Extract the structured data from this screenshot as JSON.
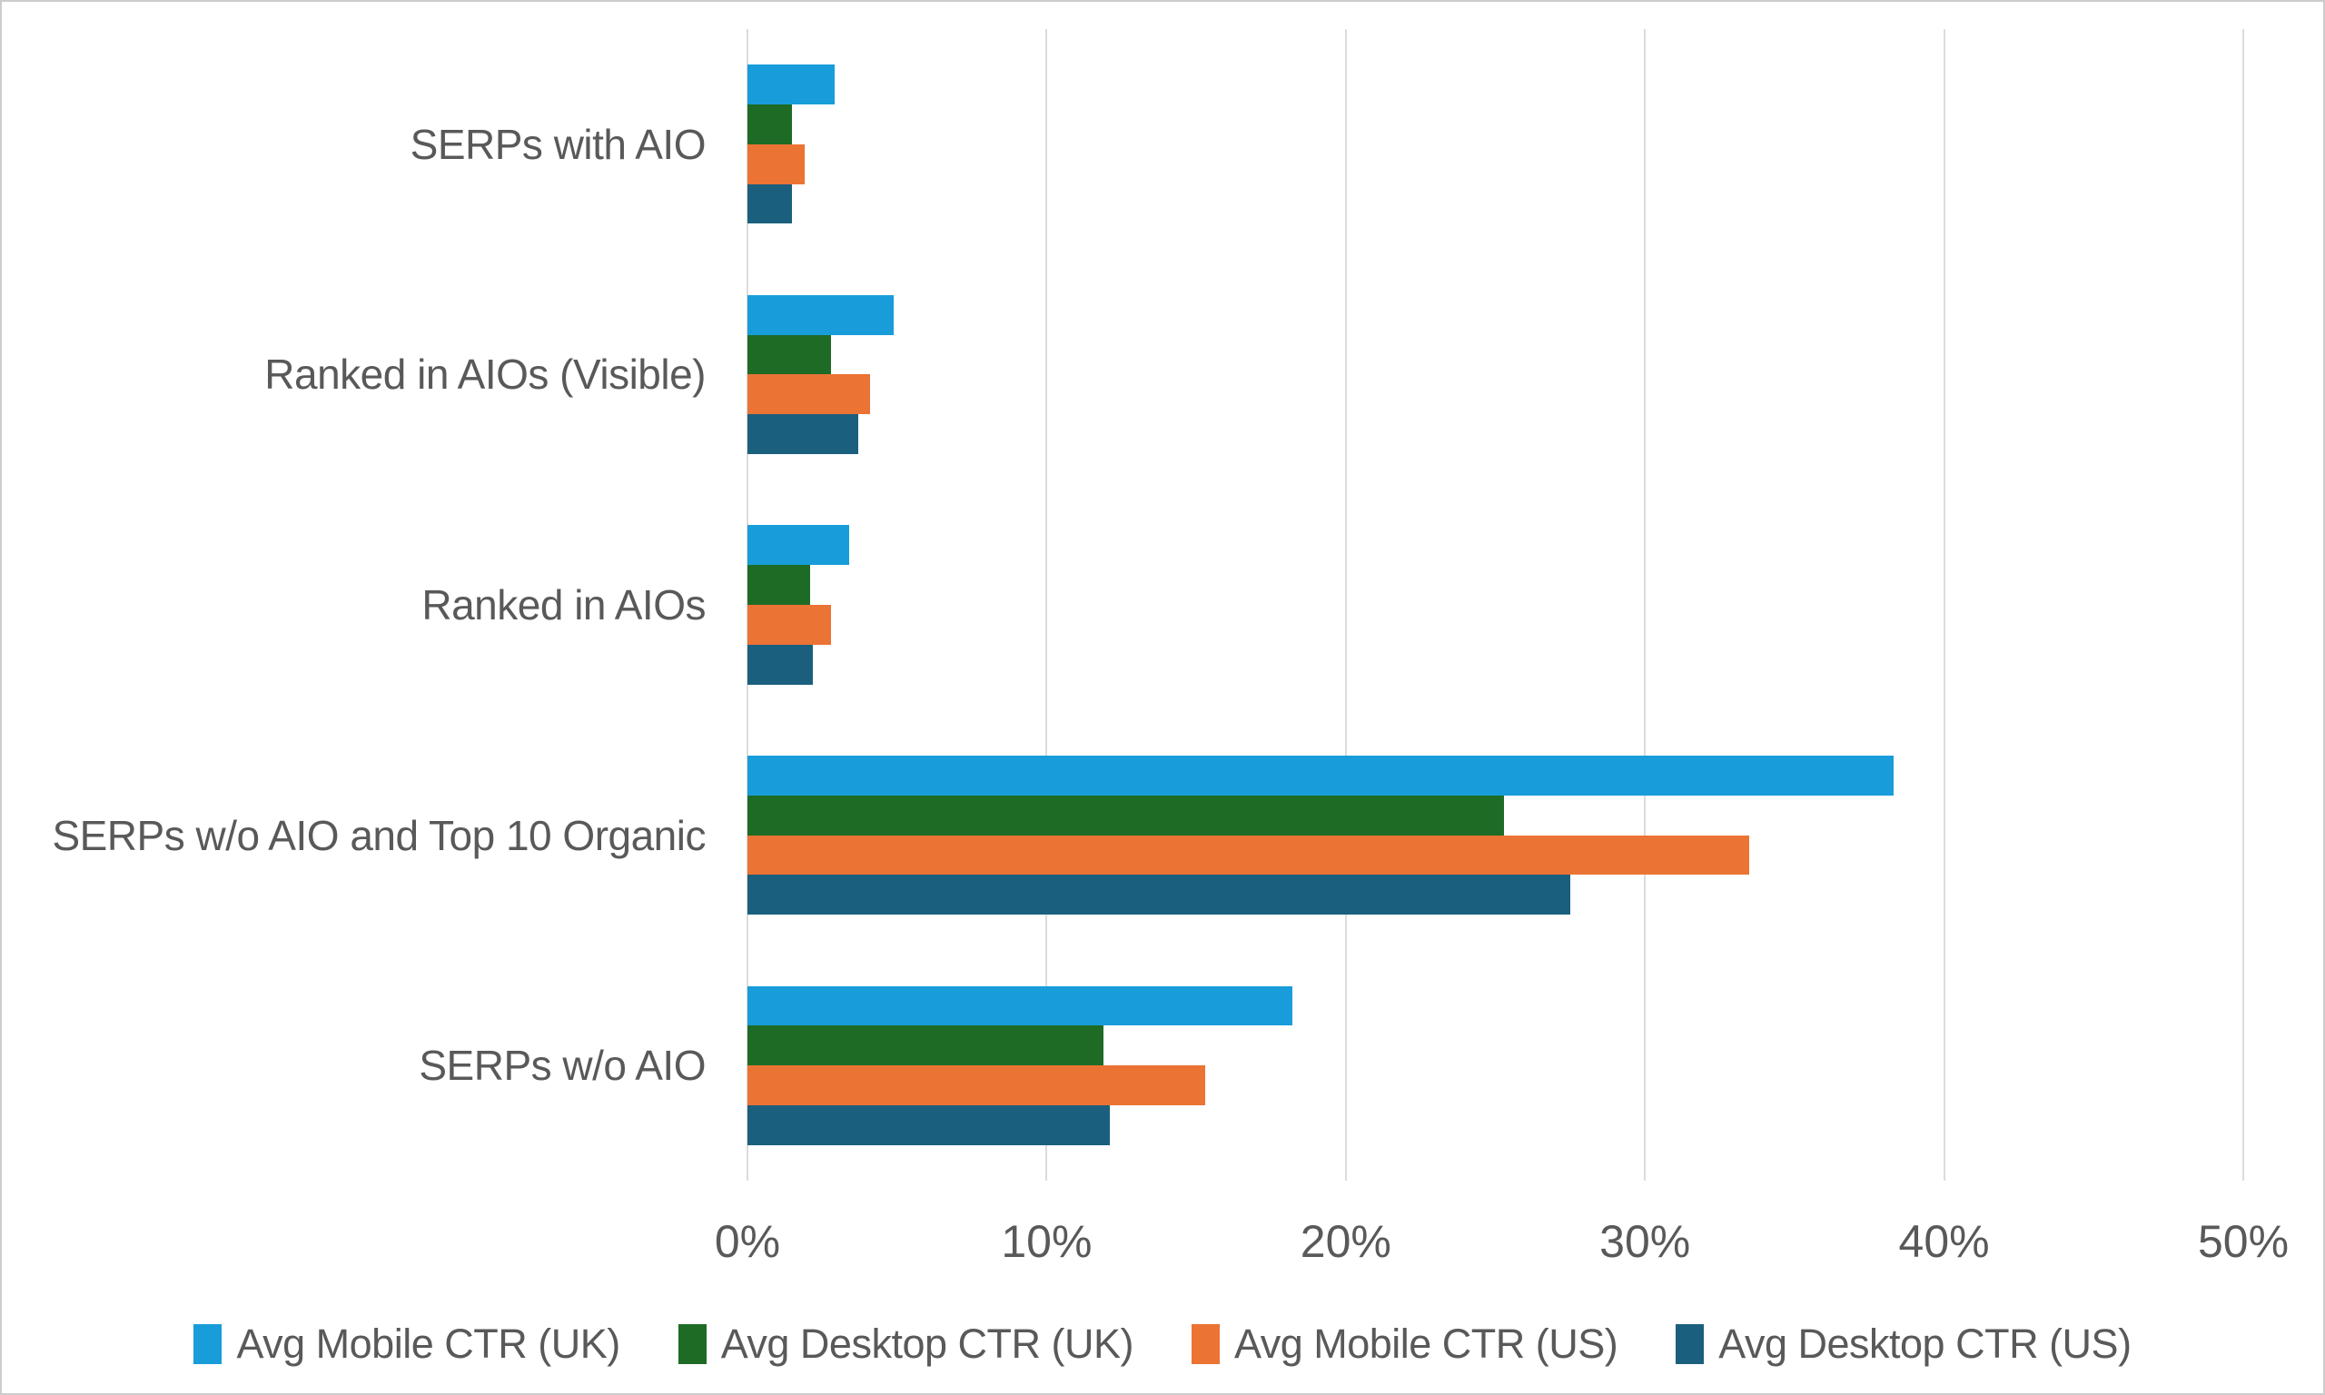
{
  "chart_data": {
    "type": "bar",
    "orientation": "horizontal",
    "title": "",
    "xlabel": "",
    "ylabel": "",
    "xlim": [
      0,
      50
    ],
    "x_tick_step": 10,
    "x_tick_labels": [
      "0%",
      "10%",
      "20%",
      "30%",
      "40%",
      "50%"
    ],
    "grid": "vertical",
    "legend_position": "bottom",
    "categories": [
      "SERPs with AIO",
      "Ranked in AIOs (Visible)",
      "Ranked in AIOs",
      "SERPs w/o AIO and Top 10 Organic",
      "SERPs w/o AIO"
    ],
    "series": [
      {
        "name": "Avg Mobile CTR (UK)",
        "color": "#189DDA",
        "values": [
          2.9,
          4.9,
          3.4,
          38.3,
          18.2
        ]
      },
      {
        "name": "Avg Desktop CTR (UK)",
        "color": "#1E6B26",
        "values": [
          1.5,
          2.8,
          2.1,
          25.3,
          11.9
        ]
      },
      {
        "name": "Avg Mobile CTR (US)",
        "color": "#EB7334",
        "values": [
          1.9,
          4.1,
          2.8,
          33.5,
          15.3
        ]
      },
      {
        "name": "Avg Desktop CTR (US)",
        "color": "#1B5F7E",
        "values": [
          1.5,
          3.7,
          2.2,
          27.5,
          12.1
        ]
      }
    ]
  },
  "style": {
    "gridline_color": "#dcdcdc",
    "axis_text_color": "#595959",
    "background_color": "#ffffff",
    "border_color": "#cccccc"
  }
}
